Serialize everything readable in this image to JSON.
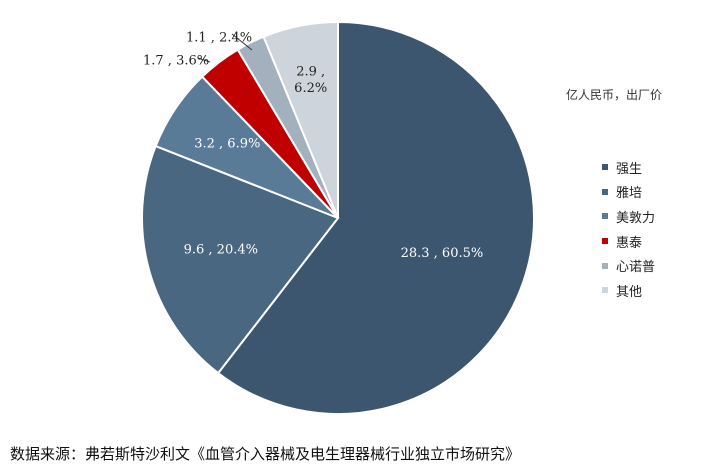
{
  "chart_data": {
    "type": "pie",
    "unit": "亿人民币，出厂价",
    "slices": [
      {
        "name": "强生",
        "value": 28.3,
        "percent": 60.5,
        "label": "28.3 , 60.5%",
        "color": "#3c566f",
        "label_color": "#ffffff"
      },
      {
        "name": "雅培",
        "value": 9.6,
        "percent": 20.4,
        "label": "9.6 , 20.4%",
        "color": "#496781",
        "label_color": "#ffffff"
      },
      {
        "name": "美敦力",
        "value": 3.2,
        "percent": 6.9,
        "label": "3.2 , 6.9%",
        "color": "#5a7b98",
        "label_color": "#ffffff"
      },
      {
        "name": "惠泰",
        "value": 1.7,
        "percent": 3.6,
        "label": "1.7 , 3.6%",
        "color": "#c00000",
        "label_color": "#222222"
      },
      {
        "name": "心诺普",
        "value": 1.1,
        "percent": 2.4,
        "label": "1.1 , 2.4%",
        "color": "#a3b1bf",
        "label_color": "#222222"
      },
      {
        "name": "其他",
        "value": 2.9,
        "percent": 6.2,
        "label_lines": [
          "2.9 ,",
          "6.2%"
        ],
        "color": "#cdd4db",
        "label_color": "#222222"
      }
    ]
  },
  "source": "数据来源：弗若斯特沙利文《血管介入器械及电生理器械行业独立市场研究》"
}
